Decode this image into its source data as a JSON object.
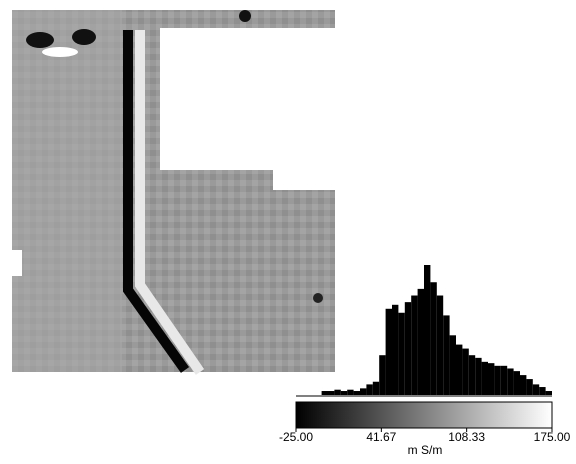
{
  "chart_data": {
    "type": "histogram",
    "bins": [
      -5,
      0,
      5,
      10,
      15,
      20,
      25,
      30,
      35,
      40,
      45,
      50,
      55,
      60,
      65,
      70,
      75,
      80,
      85,
      90,
      95,
      100,
      105,
      110,
      115,
      120,
      125,
      130,
      135,
      140,
      145,
      150,
      155,
      160,
      165,
      170,
      175
    ],
    "values": [
      3,
      3,
      4,
      3,
      4,
      3,
      5,
      8,
      10,
      30,
      65,
      68,
      62,
      70,
      75,
      80,
      98,
      85,
      75,
      60,
      45,
      38,
      35,
      30,
      28,
      25,
      24,
      22,
      22,
      20,
      18,
      15,
      12,
      8,
      6,
      3
    ],
    "color": "#000000",
    "xlim": [
      -25,
      175
    ],
    "xticks": [
      {
        "value": -25,
        "label": "-25.00"
      },
      {
        "value": 41.67,
        "label": "41.67"
      },
      {
        "value": 108.33,
        "label": "108.33"
      },
      {
        "value": 175,
        "label": "175.00"
      }
    ],
    "xlabel": "m S/m"
  }
}
